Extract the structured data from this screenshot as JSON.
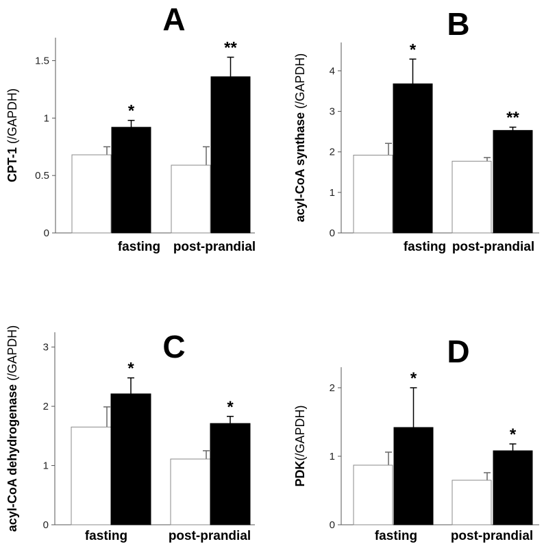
{
  "chart_data": [
    {
      "panel": "A",
      "type": "bar",
      "ylabel_bold": "CPT-1",
      "ylabel_rest": " (/GAPDH)",
      "categories": [
        "fasting",
        "post-prandial"
      ],
      "yticks": [
        "0",
        "0.5",
        "1",
        "1.5"
      ],
      "yticks_values": [
        0,
        0.5,
        1,
        1.5
      ],
      "ylim": [
        0,
        1.7
      ],
      "series": [
        {
          "color": "#ffffff",
          "values": [
            0.68,
            0.59
          ],
          "errors": [
            0.07,
            0.16
          ],
          "sig": [
            "",
            ""
          ]
        },
        {
          "color": "#000000",
          "values": [
            0.92,
            1.36
          ],
          "errors": [
            0.06,
            0.17
          ],
          "sig": [
            "*",
            "**"
          ]
        }
      ]
    },
    {
      "panel": "B",
      "type": "bar",
      "ylabel_bold": "acyl-CoA synthase",
      "ylabel_rest": " (/GAPDH)",
      "categories": [
        "fasting",
        "post-prandial"
      ],
      "yticks": [
        "0",
        "1",
        "2",
        "3",
        "4"
      ],
      "yticks_values": [
        0,
        1,
        2,
        3,
        4
      ],
      "ylim": [
        0,
        4.7
      ],
      "series": [
        {
          "color": "#ffffff",
          "values": [
            1.92,
            1.77
          ],
          "errors": [
            0.29,
            0.09
          ],
          "sig": [
            "",
            ""
          ]
        },
        {
          "color": "#000000",
          "values": [
            3.68,
            2.53
          ],
          "errors": [
            0.61,
            0.08
          ],
          "sig": [
            "*",
            "**"
          ]
        }
      ]
    },
    {
      "panel": "C",
      "type": "bar",
      "ylabel_bold": "acyl-CoA dehydrogenase",
      "ylabel_rest": " (/GAPDH)",
      "categories": [
        "fasting",
        "post-prandial"
      ],
      "yticks": [
        "0",
        "1",
        "2",
        "3"
      ],
      "yticks_values": [
        0,
        1,
        2,
        3
      ],
      "ylim": [
        0,
        3.25
      ],
      "series": [
        {
          "color": "#ffffff",
          "values": [
            1.65,
            1.11
          ],
          "errors": [
            0.34,
            0.14
          ],
          "sig": [
            "",
            ""
          ]
        },
        {
          "color": "#000000",
          "values": [
            2.21,
            1.71
          ],
          "errors": [
            0.27,
            0.12
          ],
          "sig": [
            "*",
            "*"
          ]
        }
      ]
    },
    {
      "panel": "D",
      "type": "bar",
      "ylabel_bold": "PDK",
      "ylabel_rest": "(/GAPDH)",
      "categories": [
        "fasting",
        "post-prandial"
      ],
      "yticks": [
        "0",
        "1",
        "2"
      ],
      "yticks_values": [
        0,
        1,
        2
      ],
      "ylim": [
        0,
        2.3
      ],
      "series": [
        {
          "color": "#ffffff",
          "values": [
            0.87,
            0.65
          ],
          "errors": [
            0.19,
            0.11
          ],
          "sig": [
            "",
            ""
          ]
        },
        {
          "color": "#000000",
          "values": [
            1.42,
            1.08
          ],
          "errors": [
            0.58,
            0.1
          ],
          "sig": [
            "*",
            "*"
          ]
        }
      ]
    }
  ]
}
